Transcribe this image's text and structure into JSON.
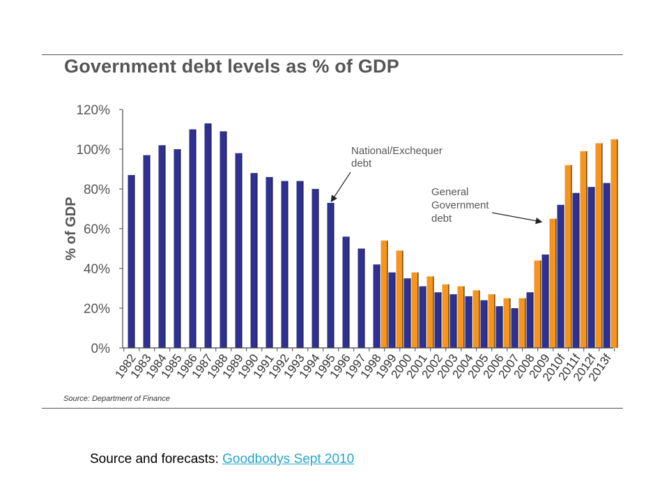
{
  "chart_data": {
    "type": "bar",
    "title": "Government debt levels as % of GDP",
    "ylabel": "% of GDP",
    "xlabel": "",
    "ylim": [
      0,
      120
    ],
    "yticks": [
      0,
      20,
      40,
      60,
      80,
      100,
      120
    ],
    "ytick_labels": [
      "0%",
      "20%",
      "40%",
      "60%",
      "80%",
      "100%",
      "120%"
    ],
    "grid": false,
    "legend": "none",
    "categories": [
      "1982",
      "1983",
      "1984",
      "1985",
      "1986",
      "1987",
      "1988",
      "1989",
      "1990",
      "1991",
      "1992",
      "1993",
      "1994",
      "1995",
      "1996",
      "1997",
      "1998",
      "1999",
      "2000",
      "2001",
      "2002",
      "2003",
      "2004",
      "2005",
      "2006",
      "2007",
      "2008",
      "2009",
      "2010f",
      "2011f",
      "2012f",
      "2013f"
    ],
    "series": [
      {
        "color": "#2e3192",
        "values": [
          87,
          97,
          102,
          100,
          110,
          113,
          109,
          98,
          88,
          86,
          84,
          84,
          80,
          73,
          56,
          50,
          42,
          38,
          35,
          31,
          28,
          27,
          26,
          24,
          21,
          20,
          28,
          47,
          72,
          78,
          81,
          83
        ]
      },
      {
        "color": "#f7941d",
        "values": [
          null,
          null,
          null,
          null,
          null,
          null,
          null,
          null,
          null,
          null,
          null,
          null,
          null,
          null,
          null,
          null,
          54,
          49,
          38,
          36,
          32,
          31,
          29,
          27,
          25,
          25,
          44,
          65,
          92,
          99,
          103,
          105
        ]
      }
    ],
    "annotations": [
      {
        "text": [
          "National/Exchequer",
          "debt"
        ]
      },
      {
        "text": [
          "General",
          "Government",
          "debt"
        ]
      }
    ],
    "source": "Source: Department of Finance"
  },
  "footer": {
    "prefix": "Source and forecasts: ",
    "link_text": "Goodbodys Sept 2010"
  }
}
